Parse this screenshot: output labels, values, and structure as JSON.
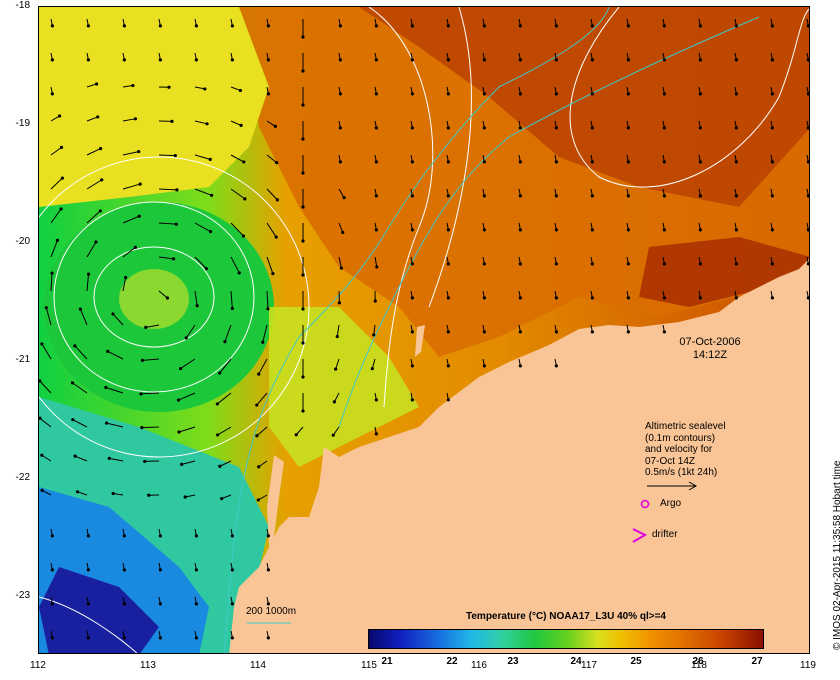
{
  "map": {
    "lat_ticks": [
      "-18",
      "-19",
      "-20",
      "-21",
      "-22",
      "-23"
    ],
    "lon_ticks": [
      "112",
      "113",
      "114",
      "115",
      "116",
      "117",
      "118",
      "119"
    ],
    "date": "07-Oct-2006",
    "time": "14:12Z",
    "legend_lines": [
      "Altimetric sealevel",
      "(0.1m contours)",
      "and velocity for",
      "07-Oct 14Z",
      "0.5m/s (1kt 24h)"
    ],
    "argo_label": "Argo",
    "drifter_label": "drifter",
    "bathy_label": "200  1000m",
    "colorbar_title": "Temperature (°C) NOAA17_L3U 40% ql>=4",
    "colorbar_ticks": [
      "21",
      "22",
      "23",
      "24",
      "25",
      "26",
      "27"
    ],
    "credit": "© IMOS 02-Apr-2015 11:35:58 Hobart time",
    "colors": {
      "land": "#f9c596",
      "contour": "#ffffff",
      "bathymetry": "#40c8c8",
      "marker": "#e000e0"
    }
  }
}
